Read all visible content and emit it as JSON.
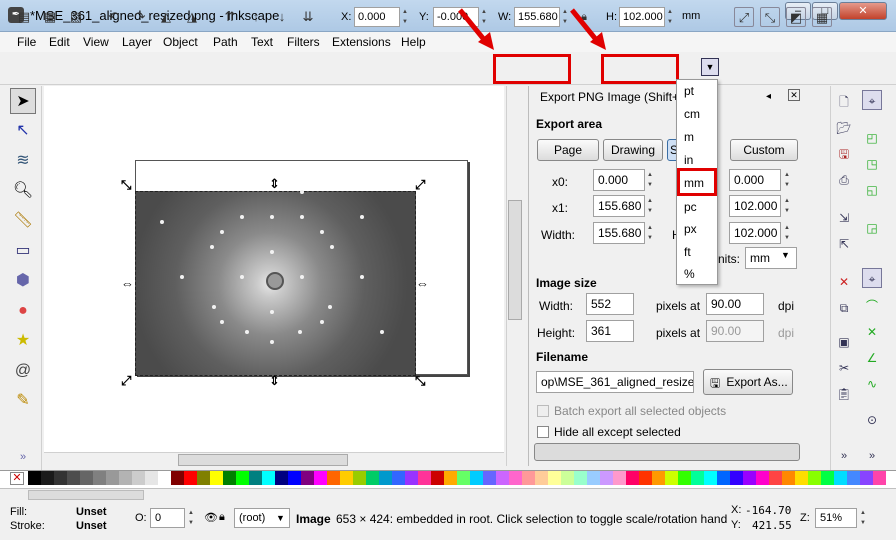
{
  "window": {
    "title": "*MSE_361_aligned_resized.png - Inkscape",
    "app_icon": "inkscape-icon",
    "controls": {
      "minimize": "–",
      "maximize": "□",
      "close": "✕"
    }
  },
  "menu": [
    "File",
    "Edit",
    "View",
    "Layer",
    "Object",
    "Path",
    "Text",
    "Filters",
    "Extensions",
    "Help"
  ],
  "toolbar": {
    "x_label": "X:",
    "x_value": "0.000",
    "y_label": "Y:",
    "y_value": "-0.000",
    "w_label": "W:",
    "w_value": "155.680",
    "h_label": "H:",
    "h_value": "102.000",
    "unit_value": "mm"
  },
  "unit_dropdown": {
    "options": [
      "pt",
      "cm",
      "m",
      "in",
      "mm",
      "pc",
      "px",
      "ft",
      "%"
    ],
    "selected": "mm"
  },
  "export_dialog": {
    "header": "Export PNG Image (Shift+",
    "export_area_label": "Export area",
    "area_buttons": [
      "Page",
      "Drawing",
      "S",
      "Custom"
    ],
    "x0_label": "x0:",
    "x0_value": "0.000",
    "x1_right_value": "0.000",
    "x1_label": "x1:",
    "x1_value": "155.680",
    "y1_value": "102.000",
    "width_label": "Width:",
    "width_value": "155.680",
    "height_short": "H",
    "height_value": "102.000",
    "units_label": "nits:",
    "units_value": "mm",
    "image_size_label": "Image size",
    "img_width_label": "Width:",
    "img_width_value": "552",
    "pixels_at_1": "pixels at",
    "dpi_1_value": "90.00",
    "dpi_1_label": "dpi",
    "img_height_label": "Height:",
    "img_height_value": "361",
    "pixels_at_2": "pixels at",
    "dpi_2_value": "90.00",
    "dpi_2_label": "dpi",
    "filename_label": "Filename",
    "filename_value": "op\\MSE_361_aligned_resized.p",
    "export_as_label": "Export As...",
    "batch_label": "Batch export all selected objects",
    "hide_label": "Hide all except selected"
  },
  "status": {
    "fill_label": "Fill:",
    "fill_value": "Unset",
    "stroke_label": "Stroke:",
    "stroke_value": "Unset",
    "opacity_label": "O:",
    "opacity_value": "0",
    "layer_value": "(root)",
    "message_bold": "Image",
    "message": "653 × 424: embedded in root. Click selection to toggle scale/rotation handl",
    "x_label": "X:",
    "x_coord": "-164.70",
    "y_label": "Y:",
    "y_coord": "421.55",
    "zoom_label": "Z:",
    "zoom_value": "51%"
  },
  "palette_colors": [
    "#000000",
    "#1a1a1a",
    "#333333",
    "#4d4d4d",
    "#666666",
    "#808080",
    "#999999",
    "#b3b3b3",
    "#cccccc",
    "#e6e6e6",
    "#ffffff",
    "#800000",
    "#ff0000",
    "#808000",
    "#ffff00",
    "#008000",
    "#00ff00",
    "#008080",
    "#00ffff",
    "#000080",
    "#0000ff",
    "#800080",
    "#ff00ff",
    "#ff6600",
    "#ffcc00",
    "#99cc00",
    "#00cc66",
    "#0099cc",
    "#3366ff",
    "#9933ff",
    "#ff3399",
    "#cc0000",
    "#ffaa00",
    "#66ff66",
    "#00ccff",
    "#6666ff",
    "#cc66ff",
    "#ff66cc",
    "#ff9999",
    "#ffcc99",
    "#ffff99",
    "#ccff99",
    "#99ffcc",
    "#99ccff",
    "#cc99ff",
    "#ff99cc",
    "#ff0066",
    "#ff3300",
    "#ff9900",
    "#ccff00",
    "#33ff00",
    "#00ff99",
    "#00ffff",
    "#0066ff",
    "#3300ff",
    "#9900ff",
    "#ff00cc",
    "#ff4444",
    "#ff8800",
    "#ffdd00",
    "#88ff00",
    "#00ff44",
    "#00ddff",
    "#4488ff",
    "#8844ff",
    "#ff44aa"
  ],
  "accent_color": "#e00000"
}
